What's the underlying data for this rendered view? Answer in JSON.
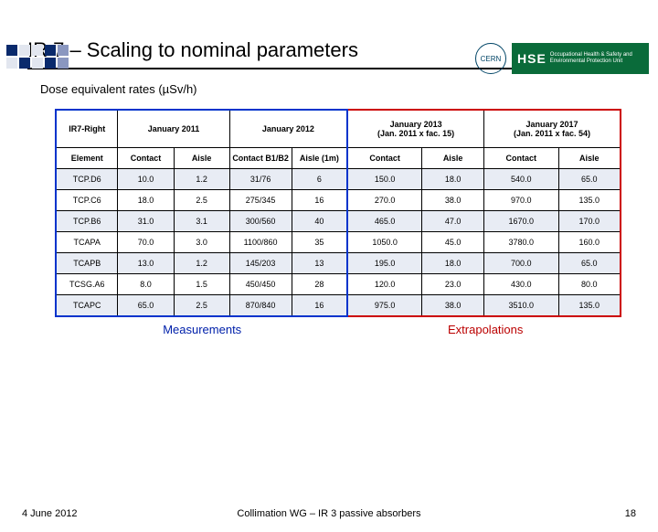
{
  "decoration_colors": [
    "#0a2a6c",
    "#e2e6ef",
    "#e2e6ef",
    "#0a2a6c",
    "#8a97c0",
    "#e2e6ef",
    "#0a2a6c",
    "#e2e6ef",
    "#0a2a6c",
    "#8a97c0"
  ],
  "logo": {
    "cern": "CERN",
    "hse": "HSE",
    "hse_sub": "Occupational Health & Safety and Environmental Protection Unit"
  },
  "title": "IR 7 – Scaling to nominal parameters",
  "subtitle": "Dose equivalent rates (µSv/h)",
  "group_headers": {
    "col0": "IR7-Right",
    "g1": "January 2011",
    "g2": "January 2012",
    "g3": "January 2013\n(Jan. 2011 x fac. 15)",
    "g4": "January 2017\n(Jan. 2011 x fac. 54)"
  },
  "sub_headers": {
    "col0": "Element",
    "c1": "Contact",
    "c2": "Aisle",
    "c3": "Contact B1/B2",
    "c4": "Aisle (1m)",
    "c5": "Contact",
    "c6": "Aisle",
    "c7": "Contact",
    "c8": "Aisle"
  },
  "rows": [
    {
      "element": "TCP.D6",
      "v": [
        "10.0",
        "1.2",
        "31/76",
        "6",
        "150.0",
        "18.0",
        "540.0",
        "65.0"
      ]
    },
    {
      "element": "TCP.C6",
      "v": [
        "18.0",
        "2.5",
        "275/345",
        "16",
        "270.0",
        "38.0",
        "970.0",
        "135.0"
      ]
    },
    {
      "element": "TCP.B6",
      "v": [
        "31.0",
        "3.1",
        "300/560",
        "40",
        "465.0",
        "47.0",
        "1670.0",
        "170.0"
      ]
    },
    {
      "element": "TCAPA",
      "v": [
        "70.0",
        "3.0",
        "1100/860",
        "35",
        "1050.0",
        "45.0",
        "3780.0",
        "160.0"
      ]
    },
    {
      "element": "TCAPB",
      "v": [
        "13.0",
        "1.2",
        "145/203",
        "13",
        "195.0",
        "18.0",
        "700.0",
        "65.0"
      ]
    },
    {
      "element": "TCSG.A6",
      "v": [
        "8.0",
        "1.5",
        "450/450",
        "28",
        "120.0",
        "23.0",
        "430.0",
        "80.0"
      ]
    },
    {
      "element": "TCAPC",
      "v": [
        "65.0",
        "2.5",
        "870/840",
        "16",
        "975.0",
        "38.0",
        "3510.0",
        "135.0"
      ]
    }
  ],
  "section_labels": {
    "measurements": "Measurements",
    "extrapolations": "Extrapolations"
  },
  "footer": {
    "date": "4 June 2012",
    "center": "Collimation WG – IR 3 passive absorbers",
    "page": "18"
  },
  "colors": {
    "blue_border": "#0033cc",
    "red_border": "#cc0000",
    "row_alt": "#e8ecf4"
  }
}
